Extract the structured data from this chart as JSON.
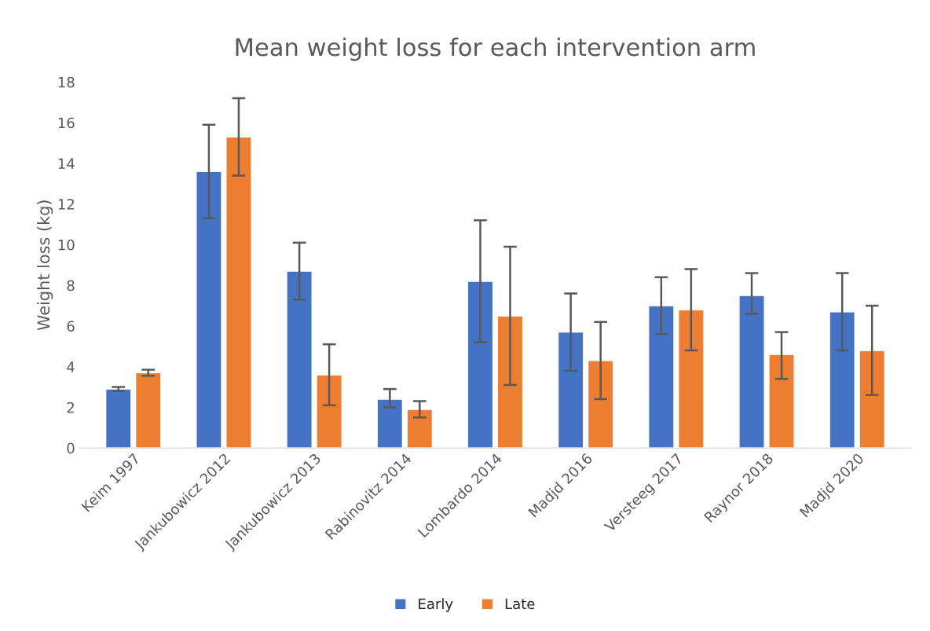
{
  "chart_data": {
    "type": "bar",
    "title": "Mean weight loss for each intervention arm",
    "ylabel": "Weight loss (kg)",
    "categories": [
      "Keim 1997",
      "Jankubowicz 2012",
      "Jankubowicz 2013",
      "Rabinovitz 2014",
      "Lombardo 2014",
      "Madjd 2016",
      "Versteeg 2017",
      "Raynor 2018",
      "Madjd 2020"
    ],
    "series": [
      {
        "name": "Early",
        "color": "#4472c4",
        "values": [
          2.9,
          13.6,
          8.7,
          2.4,
          8.2,
          5.7,
          7.0,
          7.5,
          6.7
        ],
        "errors": [
          [
            2.8,
            3.0
          ],
          [
            11.3,
            15.9
          ],
          [
            7.3,
            10.1
          ],
          [
            2.0,
            2.9
          ],
          [
            5.2,
            11.2
          ],
          [
            3.8,
            7.6
          ],
          [
            5.6,
            8.4
          ],
          [
            6.6,
            8.6
          ],
          [
            4.8,
            8.6
          ]
        ]
      },
      {
        "name": "Late",
        "color": "#ed7d31",
        "values": [
          3.7,
          15.3,
          3.6,
          1.9,
          6.5,
          4.3,
          6.8,
          4.6,
          4.8
        ],
        "errors": [
          [
            3.55,
            3.85
          ],
          [
            13.4,
            17.2
          ],
          [
            2.1,
            5.1
          ],
          [
            1.5,
            2.3
          ],
          [
            3.1,
            9.9
          ],
          [
            2.4,
            6.2
          ],
          [
            4.8,
            8.8
          ],
          [
            3.4,
            5.7
          ],
          [
            2.6,
            7.0
          ]
        ]
      }
    ],
    "ylim": [
      0,
      18
    ],
    "yticks": [
      0,
      2,
      4,
      6,
      8,
      10,
      12,
      14,
      16,
      18
    ],
    "grid": false,
    "legend": "bottom"
  }
}
